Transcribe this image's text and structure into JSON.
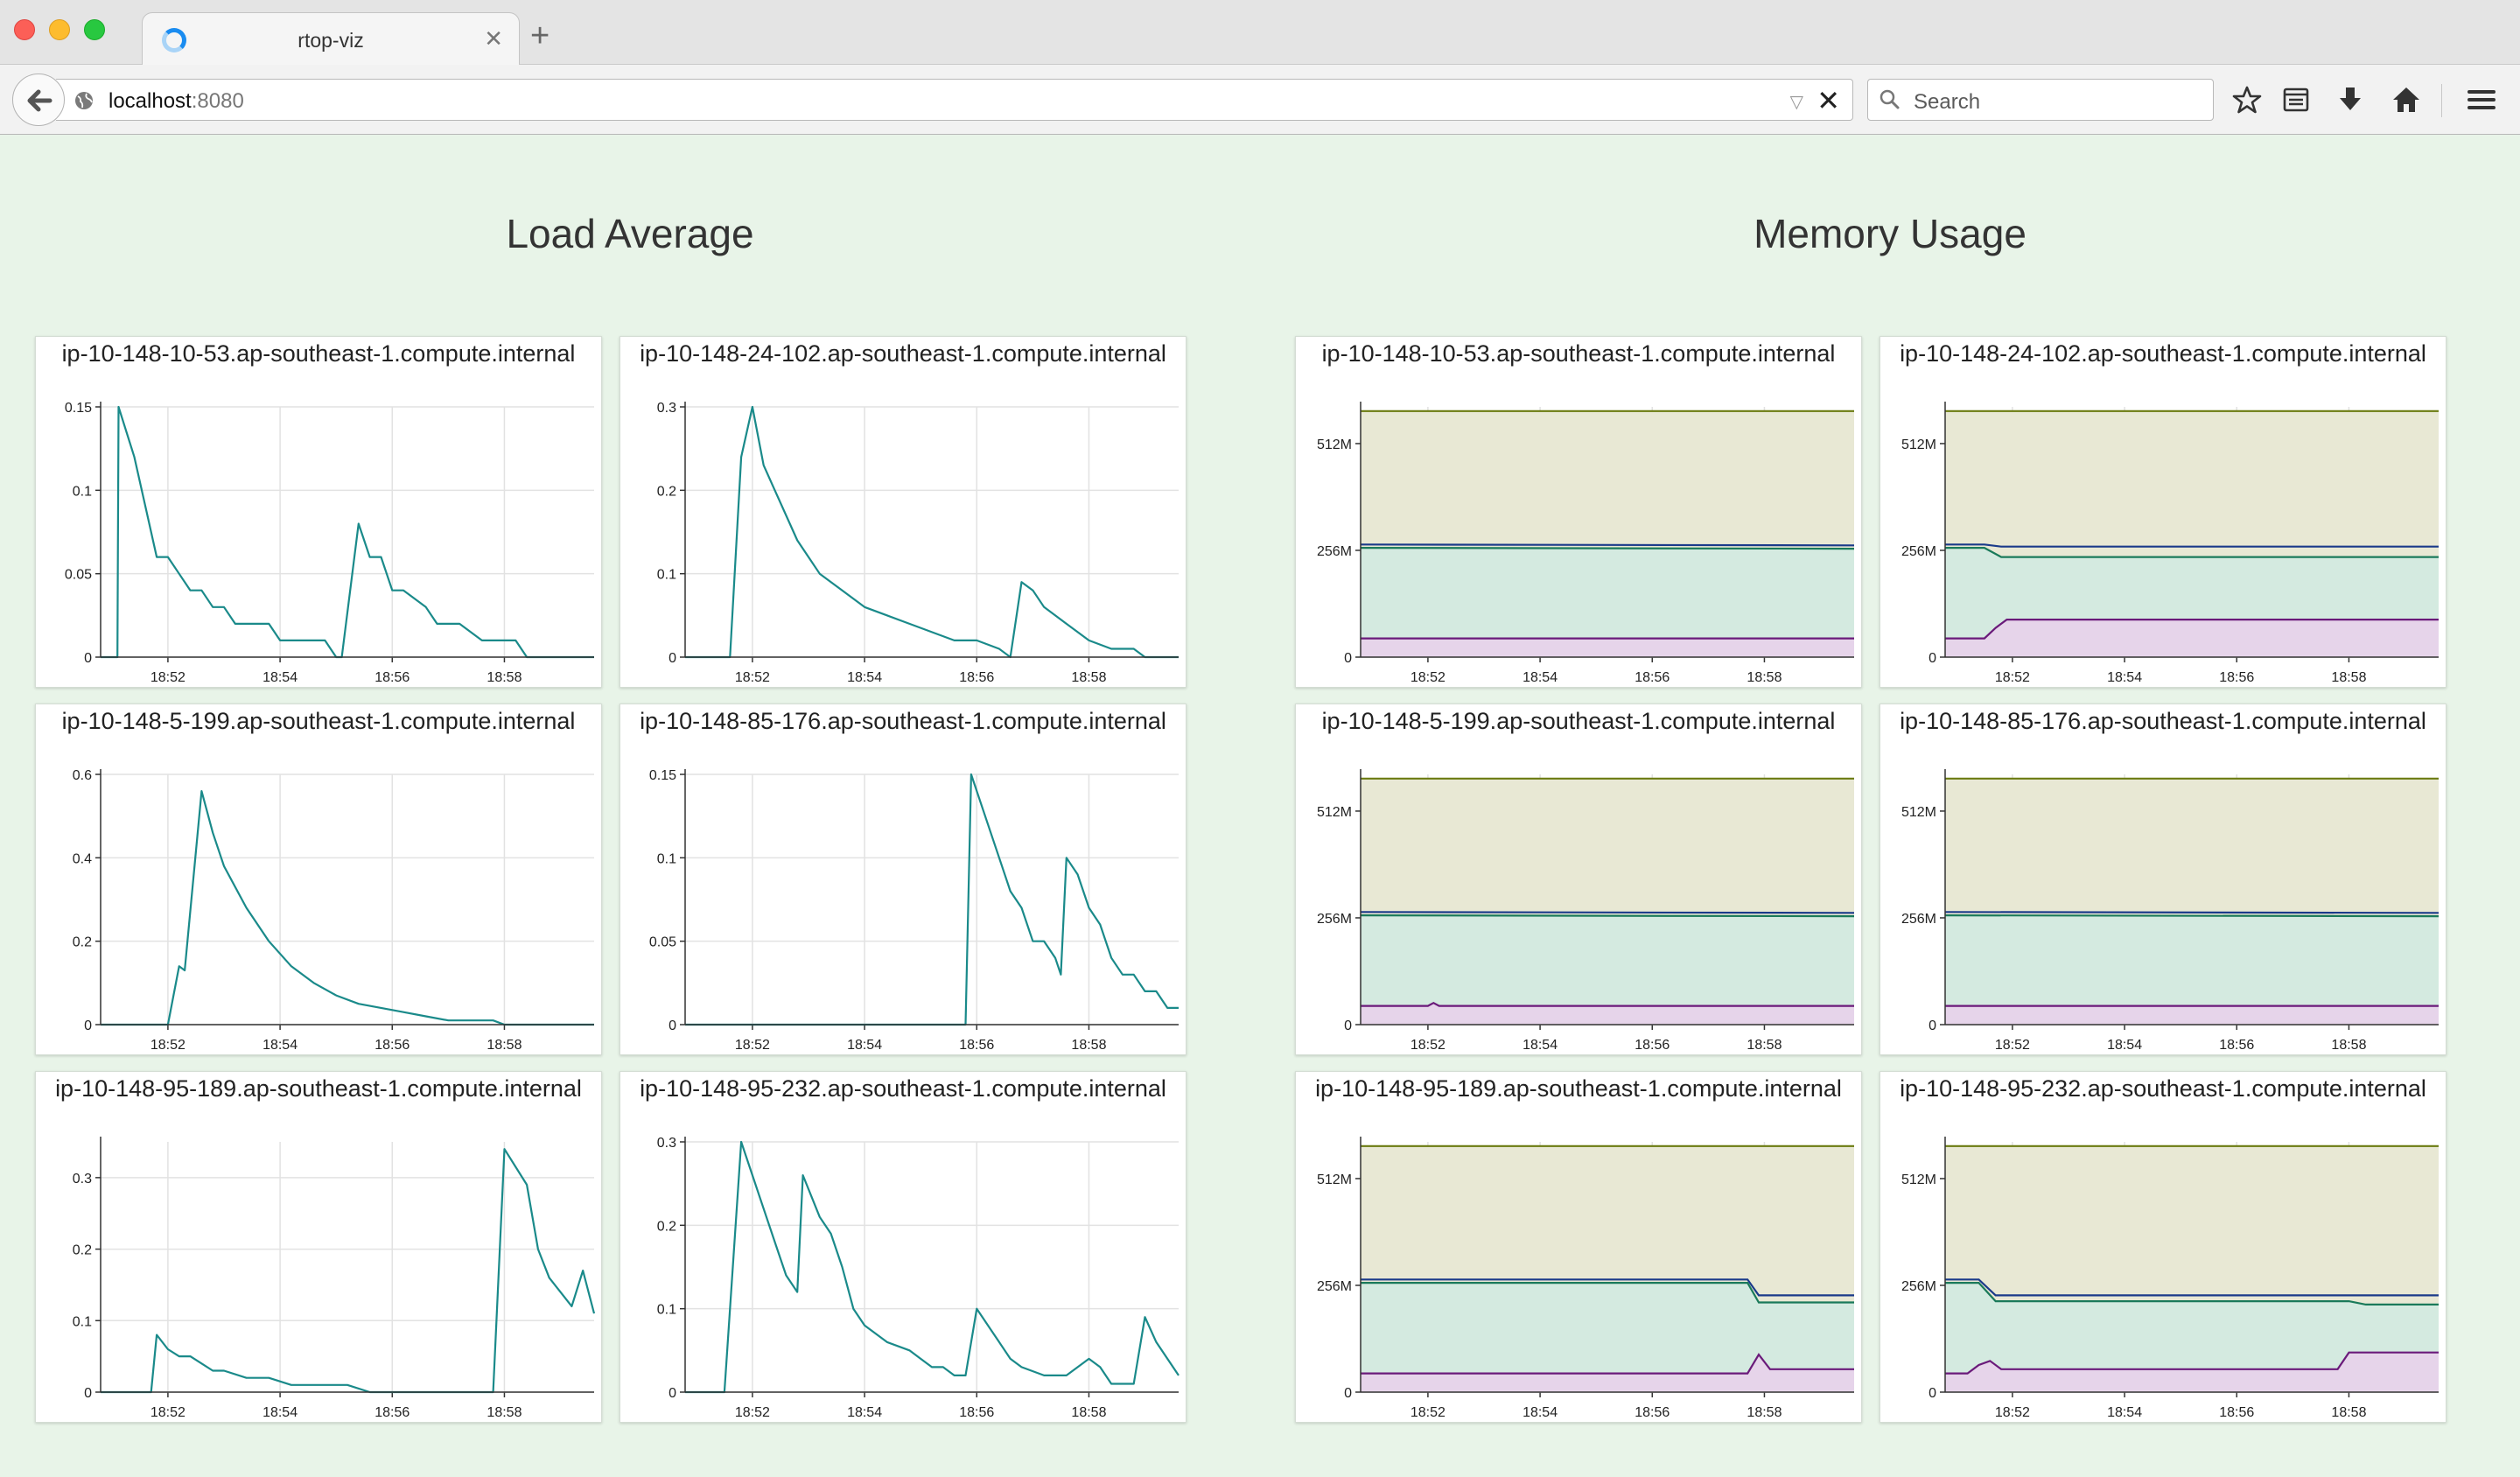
{
  "browser": {
    "tab_title": "rtop-viz",
    "url_host": "localhost",
    "url_port": ":8080",
    "search_placeholder": "Search"
  },
  "sections": {
    "load_title": "Load Average",
    "memory_title": "Memory Usage"
  },
  "hosts": [
    "ip-10-148-10-53.ap-southeast-1.compute.internal",
    "ip-10-148-24-102.ap-southeast-1.compute.internal",
    "ip-10-148-5-199.ap-southeast-1.compute.internal",
    "ip-10-148-85-176.ap-southeast-1.compute.internal",
    "ip-10-148-95-189.ap-southeast-1.compute.internal",
    "ip-10-148-95-232.ap-southeast-1.compute.internal"
  ],
  "colors": {
    "load_line": "#1a8a8a",
    "mem_total_line": "#6b7a10",
    "mem_total_fill": "#e8e8d4",
    "mem_used_line": "#1a3a8a",
    "mem_cached_line": "#1a7a5a",
    "mem_cached_fill": "#d4eae0",
    "mem_buffers_line": "#6a1a7a",
    "mem_buffers_fill": "#e6d4ea",
    "page_background": "#e8f4e8"
  },
  "chart_data": [
    {
      "type": "line",
      "title": "ip-10-148-10-53.ap-southeast-1.compute.internal",
      "x_ticks": [
        "18:52",
        "18:54",
        "18:56",
        "18:58"
      ],
      "xlim": [
        18.8,
        27.6
      ],
      "y_ticks": [
        0,
        0.05,
        0.1,
        0.15
      ],
      "y_tick_labels": [
        "0",
        "0.05",
        "0.1",
        "0.15"
      ],
      "ylim": [
        0,
        0.15
      ],
      "series": [
        {
          "x": [
            18.8,
            19.1,
            19.12,
            19.4,
            19.6,
            19.8,
            20.0,
            20.2,
            20.4,
            20.6,
            20.8,
            21.0,
            21.2,
            21.4,
            21.8,
            22.0,
            22.2,
            22.4,
            22.8,
            23.0,
            23.1,
            23.4,
            23.6,
            23.8,
            24.0,
            24.2,
            24.6,
            24.8,
            25.2,
            25.6,
            26.0,
            26.2,
            26.4,
            26.6,
            27.6
          ],
          "y": [
            0,
            0,
            0.15,
            0.12,
            0.09,
            0.06,
            0.06,
            0.05,
            0.04,
            0.04,
            0.03,
            0.03,
            0.02,
            0.02,
            0.02,
            0.01,
            0.01,
            0.01,
            0.01,
            0,
            0,
            0.08,
            0.06,
            0.06,
            0.04,
            0.04,
            0.03,
            0.02,
            0.02,
            0.01,
            0.01,
            0.01,
            0,
            0,
            0
          ]
        }
      ]
    },
    {
      "type": "line",
      "title": "ip-10-148-24-102.ap-southeast-1.compute.internal",
      "x_ticks": [
        "18:52",
        "18:54",
        "18:56",
        "18:58"
      ],
      "xlim": [
        18.8,
        27.6
      ],
      "y_ticks": [
        0,
        0.1,
        0.2,
        0.3
      ],
      "y_tick_labels": [
        "0",
        "0.1",
        "0.2",
        "0.3"
      ],
      "ylim": [
        0,
        0.3
      ],
      "series": [
        {
          "x": [
            18.8,
            19.6,
            19.8,
            20.0,
            20.2,
            20.4,
            20.8,
            21.2,
            21.6,
            22.0,
            22.4,
            22.8,
            23.2,
            23.6,
            24.0,
            24.4,
            24.6,
            24.8,
            25.0,
            25.2,
            25.6,
            26.0,
            26.4,
            26.8,
            27.0,
            27.6
          ],
          "y": [
            0,
            0,
            0.24,
            0.3,
            0.23,
            0.2,
            0.14,
            0.1,
            0.08,
            0.06,
            0.05,
            0.04,
            0.03,
            0.02,
            0.02,
            0.01,
            0.0,
            0.09,
            0.08,
            0.06,
            0.04,
            0.02,
            0.01,
            0.01,
            0,
            0
          ]
        }
      ]
    },
    {
      "type": "line",
      "title": "ip-10-148-5-199.ap-southeast-1.compute.internal",
      "x_ticks": [
        "18:52",
        "18:54",
        "18:56",
        "18:58"
      ],
      "xlim": [
        18.8,
        27.6
      ],
      "y_ticks": [
        0,
        0.2,
        0.4,
        0.6
      ],
      "y_tick_labels": [
        "0",
        "0.2",
        "0.4",
        "0.6"
      ],
      "ylim": [
        0,
        0.6
      ],
      "series": [
        {
          "x": [
            18.8,
            20.0,
            20.2,
            20.3,
            20.6,
            20.8,
            21.0,
            21.4,
            21.8,
            22.2,
            22.6,
            23.0,
            23.4,
            23.8,
            24.2,
            24.6,
            25.0,
            25.4,
            25.8,
            26.0,
            26.4,
            27.6
          ],
          "y": [
            0,
            0,
            0.14,
            0.13,
            0.56,
            0.46,
            0.38,
            0.28,
            0.2,
            0.14,
            0.1,
            0.07,
            0.05,
            0.04,
            0.03,
            0.02,
            0.01,
            0.01,
            0.01,
            0,
            0,
            0
          ]
        }
      ]
    },
    {
      "type": "line",
      "title": "ip-10-148-85-176.ap-southeast-1.compute.internal",
      "x_ticks": [
        "18:52",
        "18:54",
        "18:56",
        "18:58"
      ],
      "xlim": [
        18.8,
        27.6
      ],
      "y_ticks": [
        0,
        0.05,
        0.1,
        0.15
      ],
      "y_tick_labels": [
        "0",
        "0.05",
        "0.1",
        "0.15"
      ],
      "ylim": [
        0,
        0.15
      ],
      "series": [
        {
          "x": [
            18.8,
            23.8,
            23.9,
            24.2,
            24.4,
            24.6,
            24.8,
            25.0,
            25.2,
            25.4,
            25.5,
            25.6,
            25.8,
            26.0,
            26.2,
            26.4,
            26.6,
            26.8,
            27.0,
            27.2,
            27.4,
            27.6
          ],
          "y": [
            0,
            0,
            0.15,
            0.12,
            0.1,
            0.08,
            0.07,
            0.05,
            0.05,
            0.04,
            0.03,
            0.1,
            0.09,
            0.07,
            0.06,
            0.04,
            0.03,
            0.03,
            0.02,
            0.02,
            0.01,
            0.01
          ]
        }
      ]
    },
    {
      "type": "line",
      "title": "ip-10-148-95-189.ap-southeast-1.compute.internal",
      "x_ticks": [
        "18:52",
        "18:54",
        "18:56",
        "18:58"
      ],
      "xlim": [
        18.8,
        27.6
      ],
      "y_ticks": [
        0,
        0.1,
        0.2,
        0.3
      ],
      "y_tick_labels": [
        "0",
        "0.1",
        "0.2",
        "0.3"
      ],
      "ylim": [
        0,
        0.35
      ],
      "series": [
        {
          "x": [
            18.8,
            19.7,
            19.8,
            20.0,
            20.2,
            20.4,
            20.6,
            20.8,
            21.0,
            21.4,
            21.8,
            22.2,
            22.6,
            23.2,
            23.6,
            24.0,
            24.2,
            24.4,
            24.6,
            24.8,
            25.0,
            25.2,
            25.4,
            25.6,
            25.8,
            26.0,
            26.4,
            26.6,
            26.8,
            27.0,
            27.2,
            27.4,
            27.6
          ],
          "y": [
            0,
            0,
            0.08,
            0.06,
            0.05,
            0.05,
            0.04,
            0.03,
            0.03,
            0.02,
            0.02,
            0.01,
            0.01,
            0.01,
            0,
            0,
            0,
            0,
            0,
            0,
            0,
            0,
            0,
            0,
            0,
            0.34,
            0.29,
            0.2,
            0.16,
            0.14,
            0.12,
            0.17,
            0.11
          ]
        }
      ]
    },
    {
      "type": "line",
      "title": "ip-10-148-95-232.ap-southeast-1.compute.internal",
      "x_ticks": [
        "18:52",
        "18:54",
        "18:56",
        "18:58"
      ],
      "xlim": [
        18.8,
        27.6
      ],
      "y_ticks": [
        0,
        0.1,
        0.2,
        0.3
      ],
      "y_tick_labels": [
        "0",
        "0.1",
        "0.2",
        "0.3"
      ],
      "ylim": [
        0,
        0.3
      ],
      "series": [
        {
          "x": [
            18.8,
            19.5,
            19.8,
            20.0,
            20.2,
            20.4,
            20.6,
            20.8,
            20.9,
            21.2,
            21.4,
            21.6,
            21.8,
            22.0,
            22.4,
            22.8,
            23.0,
            23.2,
            23.4,
            23.6,
            23.8,
            24.0,
            24.4,
            24.6,
            24.8,
            25.2,
            25.6,
            26.0,
            26.2,
            26.4,
            26.8,
            27.0,
            27.2,
            27.6
          ],
          "y": [
            0,
            0,
            0.3,
            0.26,
            0.22,
            0.18,
            0.14,
            0.12,
            0.26,
            0.21,
            0.19,
            0.15,
            0.1,
            0.08,
            0.06,
            0.05,
            0.04,
            0.03,
            0.03,
            0.02,
            0.02,
            0.1,
            0.06,
            0.04,
            0.03,
            0.02,
            0.02,
            0.04,
            0.03,
            0.01,
            0.01,
            0.09,
            0.06,
            0.02
          ]
        }
      ]
    },
    {
      "type": "area",
      "title": "ip-10-148-10-53.ap-southeast-1.compute.internal",
      "x_ticks": [
        "18:52",
        "18:54",
        "18:56",
        "18:58"
      ],
      "xlim": [
        18.8,
        27.6
      ],
      "y_ticks": [
        0,
        256,
        512
      ],
      "y_tick_labels": [
        "0",
        "256M",
        "512M"
      ],
      "ylim": [
        0,
        600
      ],
      "series": [
        {
          "role": "total",
          "x": [
            18.8,
            27.6
          ],
          "y": [
            590,
            590
          ]
        },
        {
          "role": "used",
          "x": [
            18.8,
            27.6
          ],
          "y": [
            270,
            268
          ]
        },
        {
          "role": "cached",
          "x": [
            18.8,
            27.6
          ],
          "y": [
            262,
            260
          ]
        },
        {
          "role": "buffers",
          "x": [
            18.8,
            27.6
          ],
          "y": [
            45,
            45
          ]
        }
      ]
    },
    {
      "type": "area",
      "title": "ip-10-148-24-102.ap-southeast-1.compute.internal",
      "x_ticks": [
        "18:52",
        "18:54",
        "18:56",
        "18:58"
      ],
      "xlim": [
        18.8,
        27.6
      ],
      "y_ticks": [
        0,
        256,
        512
      ],
      "y_tick_labels": [
        "0",
        "256M",
        "512M"
      ],
      "ylim": [
        0,
        600
      ],
      "series": [
        {
          "role": "total",
          "x": [
            18.8,
            27.6
          ],
          "y": [
            590,
            590
          ]
        },
        {
          "role": "used",
          "x": [
            18.8,
            19.5,
            19.8,
            27.6
          ],
          "y": [
            270,
            270,
            265,
            265
          ]
        },
        {
          "role": "cached",
          "x": [
            18.8,
            19.5,
            19.8,
            27.6
          ],
          "y": [
            262,
            262,
            240,
            240
          ]
        },
        {
          "role": "buffers",
          "x": [
            18.8,
            19.5,
            19.7,
            19.9,
            27.6
          ],
          "y": [
            45,
            45,
            70,
            90,
            90
          ]
        }
      ]
    },
    {
      "type": "area",
      "title": "ip-10-148-5-199.ap-southeast-1.compute.internal",
      "x_ticks": [
        "18:52",
        "18:54",
        "18:56",
        "18:58"
      ],
      "xlim": [
        18.8,
        27.6
      ],
      "y_ticks": [
        0,
        256,
        512
      ],
      "y_tick_labels": [
        "0",
        "256M",
        "512M"
      ],
      "ylim": [
        0,
        600
      ],
      "series": [
        {
          "role": "total",
          "x": [
            18.8,
            27.6
          ],
          "y": [
            590,
            590
          ]
        },
        {
          "role": "used",
          "x": [
            18.8,
            27.6
          ],
          "y": [
            270,
            268
          ]
        },
        {
          "role": "cached",
          "x": [
            18.8,
            27.6
          ],
          "y": [
            262,
            260
          ]
        },
        {
          "role": "buffers",
          "x": [
            18.8,
            20.0,
            20.1,
            20.2,
            27.6
          ],
          "y": [
            45,
            45,
            52,
            45,
            45
          ]
        }
      ]
    },
    {
      "type": "area",
      "title": "ip-10-148-85-176.ap-southeast-1.compute.internal",
      "x_ticks": [
        "18:52",
        "18:54",
        "18:56",
        "18:58"
      ],
      "xlim": [
        18.8,
        27.6
      ],
      "y_ticks": [
        0,
        256,
        512
      ],
      "y_tick_labels": [
        "0",
        "256M",
        "512M"
      ],
      "ylim": [
        0,
        600
      ],
      "series": [
        {
          "role": "total",
          "x": [
            18.8,
            27.6
          ],
          "y": [
            590,
            590
          ]
        },
        {
          "role": "used",
          "x": [
            18.8,
            27.6
          ],
          "y": [
            270,
            268
          ]
        },
        {
          "role": "cached",
          "x": [
            18.8,
            27.6
          ],
          "y": [
            262,
            260
          ]
        },
        {
          "role": "buffers",
          "x": [
            18.8,
            27.6
          ],
          "y": [
            45,
            45
          ]
        }
      ]
    },
    {
      "type": "area",
      "title": "ip-10-148-95-189.ap-southeast-1.compute.internal",
      "x_ticks": [
        "18:52",
        "18:54",
        "18:56",
        "18:58"
      ],
      "xlim": [
        18.8,
        27.6
      ],
      "y_ticks": [
        0,
        256,
        512
      ],
      "y_tick_labels": [
        "0",
        "256M",
        "512M"
      ],
      "ylim": [
        0,
        600
      ],
      "series": [
        {
          "role": "total",
          "x": [
            18.8,
            27.6
          ],
          "y": [
            590,
            590
          ]
        },
        {
          "role": "used",
          "x": [
            18.8,
            25.7,
            25.9,
            27.6
          ],
          "y": [
            270,
            270,
            232,
            232
          ]
        },
        {
          "role": "cached",
          "x": [
            18.8,
            25.7,
            25.9,
            27.6
          ],
          "y": [
            262,
            262,
            215,
            215
          ]
        },
        {
          "role": "buffers",
          "x": [
            18.8,
            25.7,
            25.9,
            26.1,
            27.6
          ],
          "y": [
            45,
            45,
            90,
            55,
            55
          ]
        }
      ]
    },
    {
      "type": "area",
      "title": "ip-10-148-95-232.ap-southeast-1.compute.internal",
      "x_ticks": [
        "18:52",
        "18:54",
        "18:56",
        "18:58"
      ],
      "xlim": [
        18.8,
        27.6
      ],
      "y_ticks": [
        0,
        256,
        512
      ],
      "y_tick_labels": [
        "0",
        "256M",
        "512M"
      ],
      "ylim": [
        0,
        600
      ],
      "series": [
        {
          "role": "total",
          "x": [
            18.8,
            27.6
          ],
          "y": [
            590,
            590
          ]
        },
        {
          "role": "used",
          "x": [
            18.8,
            19.4,
            19.7,
            27.6
          ],
          "y": [
            270,
            270,
            232,
            232
          ]
        },
        {
          "role": "cached",
          "x": [
            18.8,
            19.4,
            19.7,
            26.0,
            26.3,
            27.6
          ],
          "y": [
            262,
            262,
            218,
            218,
            210,
            210
          ]
        },
        {
          "role": "buffers",
          "x": [
            18.8,
            19.2,
            19.4,
            19.6,
            19.8,
            25.8,
            26.0,
            27.6
          ],
          "y": [
            45,
            45,
            65,
            75,
            55,
            55,
            95,
            95
          ]
        }
      ]
    }
  ]
}
